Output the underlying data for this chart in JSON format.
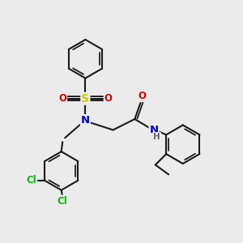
{
  "bg_color": "#ebebeb",
  "bond_color": "#1a1a1a",
  "bond_width": 1.5,
  "atom_colors": {
    "N": "#0000cc",
    "O": "#cc0000",
    "S": "#cccc00",
    "Cl": "#00bb00",
    "H": "#666666",
    "C": "#1a1a1a"
  },
  "font_size": 8.5
}
